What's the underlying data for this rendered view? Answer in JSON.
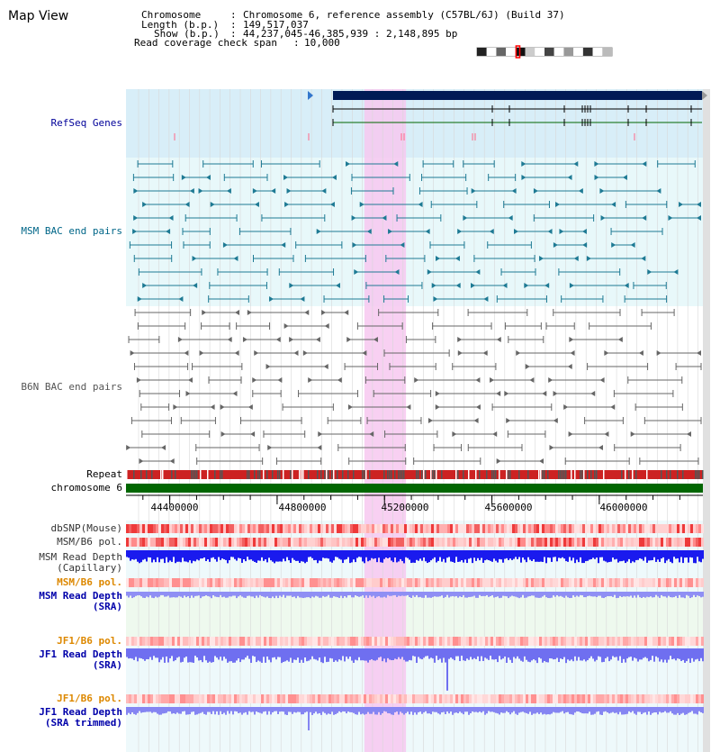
{
  "view": {
    "title": "Map View"
  },
  "info": {
    "chromosome_key": "Chromosome",
    "chromosome_value": "Chromosome 6, reference assembly (C57BL/6J) (Build 37)",
    "length_key": "Length (b.p.)",
    "length_value": "149,517,037",
    "show_key": "Show (b.p.)",
    "show_value": "44,237,045-46,385,939 : 2,148,895 bp",
    "coverage_key": "Read coverage check span",
    "coverage_value": "10,000"
  },
  "ideogram": {
    "selected_start": 44237045,
    "selected_end": 46385939,
    "chrom_length": 149517037
  },
  "tracks": {
    "refseq": "RefSeq Genes",
    "msm_bac": "MSM BAC end pairs",
    "b6n_bac": "B6N BAC end pairs",
    "repeat": "Repeat",
    "chromosome": "chromosome 6",
    "dbsnp": "dbSNP(Mouse)",
    "msm_b6_pol": "MSM/B6 pol.",
    "msm_depth_cap_1": "MSM Read Depth",
    "msm_depth_cap_2": "(Capillary)",
    "msm_b6_pol_sra": "MSM/B6 pol.",
    "msm_depth_sra_1": "MSM Read Depth",
    "msm_depth_sra_2": "(SRA)",
    "jf1_b6_pol": "JF1/B6 pol.",
    "jf1_depth_1": "JF1 Read Depth",
    "jf1_depth_2": "(SRA)",
    "jf1_b6_pol_trim": "JF1/B6 pol.",
    "jf1_depth_trim_1": "JF1 Read Depth",
    "jf1_depth_trim_2": "(SRA trimmed)"
  },
  "axis": {
    "ticks": [
      "44400000",
      "44800000",
      "45200000",
      "45600000",
      "46000000"
    ],
    "tick_values": [
      44400000,
      44800000,
      45200000,
      45600000,
      46000000
    ],
    "view_start": 44237045,
    "view_end": 46385939
  },
  "highlight": {
    "start": 45125000,
    "end": 45280000
  },
  "colors": {
    "refseq_label": "#000099",
    "msm_label": "#006688",
    "b6n_label": "#555555",
    "orange_label": "#dd8800",
    "blue_label": "#0000aa",
    "highlight": "#f7c8f0",
    "refseq_bg": "#d8eef8",
    "msm_bg": "#e8f8fa",
    "chromosome_bar": "#006600",
    "depth_capillary": "#1a1aee",
    "depth_sra": "#8f8ff4"
  }
}
